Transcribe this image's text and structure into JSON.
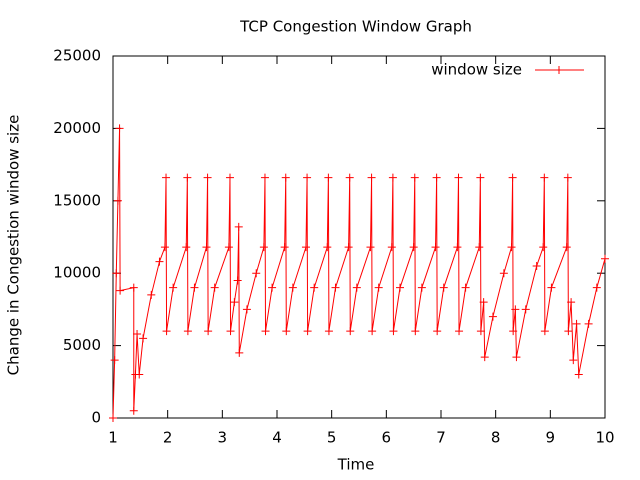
{
  "chart_data": {
    "type": "line",
    "title": "TCP Congestion Window Graph",
    "x_label": "Time",
    "y_label": "Change in Congestion window size",
    "xlim": [
      1,
      10
    ],
    "xticks": [
      1,
      2,
      3,
      4,
      5,
      6,
      7,
      8,
      9,
      10
    ],
    "ylim": [
      0,
      25000
    ],
    "yticks": [
      0,
      5000,
      10000,
      15000,
      20000,
      25000
    ],
    "legend_position": "top-right",
    "series": [
      {
        "name": "window size",
        "color": "#ff0000",
        "x": [
          1.0,
          1.03,
          1.06,
          1.09,
          1.12,
          1.13,
          1.38,
          1.38,
          1.41,
          1.44,
          1.48,
          1.55,
          1.7,
          1.85,
          1.95,
          1.97,
          1.98,
          2.1,
          2.34,
          2.36,
          2.37,
          2.49,
          2.71,
          2.73,
          2.74,
          2.86,
          3.12,
          3.14,
          3.15,
          3.22,
          3.28,
          3.3,
          3.31,
          3.45,
          3.62,
          3.76,
          3.78,
          3.79,
          3.91,
          4.14,
          4.16,
          4.17,
          4.29,
          4.53,
          4.55,
          4.56,
          4.68,
          4.92,
          4.94,
          4.95,
          5.07,
          5.31,
          5.33,
          5.34,
          5.46,
          5.71,
          5.73,
          5.74,
          5.86,
          6.1,
          6.12,
          6.13,
          6.25,
          6.5,
          6.52,
          6.53,
          6.65,
          6.9,
          6.92,
          6.93,
          7.05,
          7.3,
          7.32,
          7.33,
          7.45,
          7.7,
          7.72,
          7.73,
          7.78,
          7.8,
          7.95,
          8.15,
          8.29,
          8.31,
          8.32,
          8.36,
          8.38,
          8.55,
          8.75,
          8.87,
          8.89,
          8.9,
          9.02,
          9.3,
          9.32,
          9.33,
          9.38,
          9.42,
          9.48,
          9.52,
          9.7,
          9.85,
          10.0
        ],
        "values": [
          0,
          4000,
          10000,
          15000,
          20000,
          8800,
          9000,
          500,
          3000,
          5800,
          3000,
          5500,
          8500,
          10800,
          11800,
          16600,
          6000,
          9000,
          11800,
          16600,
          6000,
          9000,
          11800,
          16600,
          6000,
          9000,
          11800,
          16600,
          6000,
          8000,
          9500,
          13200,
          4500,
          7500,
          10000,
          11800,
          16600,
          6000,
          9000,
          11800,
          16600,
          6000,
          9000,
          11800,
          16600,
          6000,
          9000,
          11800,
          16600,
          6000,
          9000,
          11800,
          16600,
          6000,
          9000,
          11800,
          16600,
          6000,
          9000,
          11800,
          16600,
          6000,
          9000,
          11800,
          16600,
          6000,
          9000,
          11800,
          16600,
          6000,
          9000,
          11800,
          16600,
          6000,
          9000,
          11800,
          16600,
          6000,
          8000,
          4200,
          7000,
          10000,
          11800,
          16600,
          6000,
          7500,
          4200,
          7500,
          10500,
          11800,
          16600,
          6000,
          9000,
          11800,
          16600,
          6000,
          8000,
          4000,
          6500,
          3000,
          6500,
          9000,
          11000
        ]
      }
    ]
  }
}
